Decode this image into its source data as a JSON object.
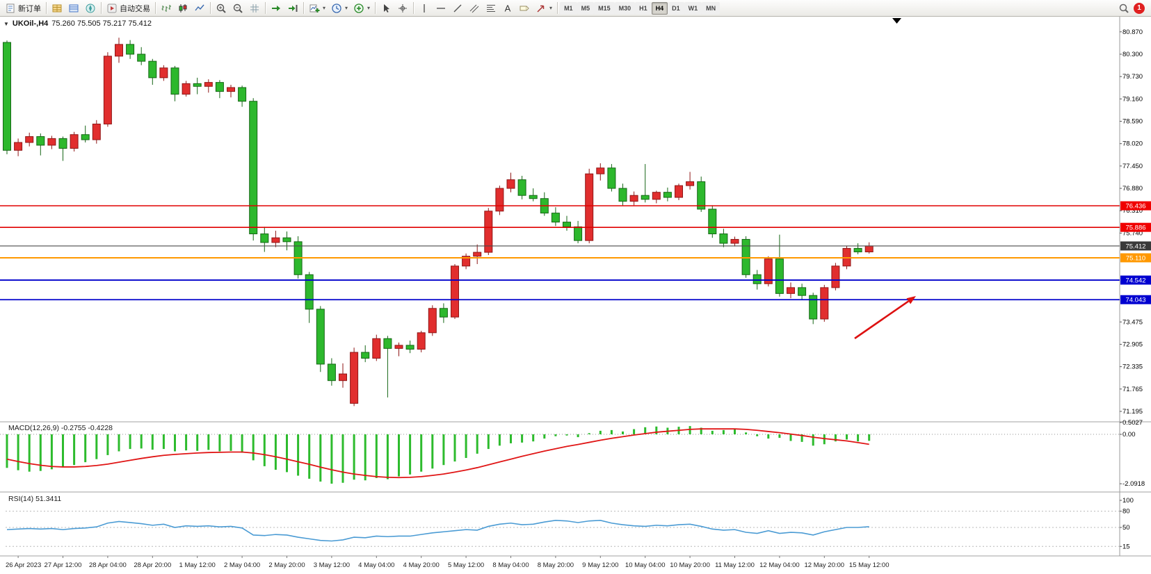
{
  "toolbar": {
    "groups": [
      {
        "items": [
          {
            "name": "new-order-button",
            "icon": "doc",
            "label": "新订单"
          }
        ]
      },
      {
        "items": [
          {
            "name": "market-watch-icon",
            "icon": "market"
          },
          {
            "name": "data-window-icon",
            "icon": "datawin"
          },
          {
            "name": "navigator-icon",
            "icon": "navigator"
          }
        ]
      },
      {
        "items": [
          {
            "name": "auto-trading-button",
            "icon": "play",
            "label": "自动交易"
          }
        ]
      },
      {
        "items": [
          {
            "name": "bar-chart-button",
            "icon": "bars"
          },
          {
            "name": "candlestick-chart-button",
            "icon": "candles"
          },
          {
            "name": "line-chart-button",
            "icon": "linechart"
          }
        ]
      },
      {
        "items": [
          {
            "name": "zoom-in-button",
            "icon": "zoomin"
          },
          {
            "name": "zoom-out-button",
            "icon": "zoomout"
          },
          {
            "name": "grid-button",
            "icon": "grid"
          }
        ]
      },
      {
        "items": [
          {
            "name": "auto-scroll-button",
            "icon": "autoscroll"
          },
          {
            "name": "chart-shift-button",
            "icon": "chartshift"
          }
        ]
      },
      {
        "items": [
          {
            "name": "new-chart-button",
            "icon": "newchart",
            "dropdown": true
          },
          {
            "name": "periods-button",
            "icon": "clock",
            "dropdown": true
          },
          {
            "name": "indicators-button",
            "icon": "indicators",
            "dropdown": true
          }
        ]
      },
      {
        "items": [
          {
            "name": "cursor-button",
            "icon": "cursor"
          },
          {
            "name": "crosshair-button",
            "icon": "crosshair"
          }
        ]
      },
      {
        "items": [
          {
            "name": "vertical-line-button",
            "icon": "vline"
          },
          {
            "name": "horizontal-line-button",
            "icon": "hline"
          },
          {
            "name": "trendline-button",
            "icon": "trendline"
          },
          {
            "name": "channel-button",
            "icon": "channel"
          },
          {
            "name": "fibonacci-button",
            "icon": "fib"
          },
          {
            "name": "text-button",
            "icon": "textA"
          },
          {
            "name": "label-button",
            "icon": "label"
          },
          {
            "name": "arrows-button",
            "icon": "arrows",
            "dropdown": true
          }
        ]
      }
    ],
    "timeframes": {
      "items": [
        "M1",
        "M5",
        "M15",
        "M30",
        "H1",
        "H4",
        "D1",
        "W1",
        "MN"
      ],
      "active": "H4"
    },
    "right": {
      "search_icon": "search",
      "notification_count": "1"
    }
  },
  "chart": {
    "toggle_glyph": "▼",
    "title_symbol": "UKOil-,H4",
    "title_ohlc": "75.260 75.505 75.217 75.412"
  },
  "chart_data": {
    "type": "candlestick",
    "symbol": "UKOil-",
    "timeframe": "H4",
    "last_bar": {
      "open": 75.26,
      "high": 75.505,
      "low": 75.217,
      "close": 75.412
    },
    "ylim": [
      71.0,
      81.15
    ],
    "price_axis_labels": [
      "80.870",
      "80.300",
      "79.730",
      "79.160",
      "78.590",
      "78.020",
      "77.450",
      "76.880",
      "76.310",
      "75.740",
      "73.475",
      "72.905",
      "72.335",
      "71.765",
      "71.195"
    ],
    "time_labels": [
      "26 Apr 2023",
      "27 Apr 12:00",
      "28 Apr 04:00",
      "28 Apr 20:00",
      "1 May 12:00",
      "2 May 04:00",
      "2 May 20:00",
      "3 May 12:00",
      "4 May 04:00",
      "4 May 20:00",
      "5 May 12:00",
      "8 May 04:00",
      "8 May 20:00",
      "9 May 12:00",
      "10 May 04:00",
      "10 May 20:00",
      "11 May 12:00",
      "12 May 04:00",
      "12 May 20:00",
      "15 May 12:00"
    ],
    "colors": {
      "bull": "#e12e2e",
      "bear": "#2db82d",
      "bull_edge": "#8f1616",
      "bear_edge": "#156615"
    },
    "candles": [
      [
        80.6,
        80.65,
        77.75,
        77.85
      ],
      [
        77.85,
        78.15,
        77.7,
        78.05
      ],
      [
        78.05,
        78.3,
        77.95,
        78.2
      ],
      [
        78.2,
        78.28,
        77.72,
        77.98
      ],
      [
        77.98,
        78.22,
        77.88,
        78.15
      ],
      [
        78.15,
        78.2,
        77.58,
        77.9
      ],
      [
        77.9,
        78.32,
        77.82,
        78.25
      ],
      [
        78.25,
        78.48,
        78.05,
        78.12
      ],
      [
        78.12,
        78.62,
        78.02,
        78.52
      ],
      [
        78.52,
        80.35,
        78.45,
        80.25
      ],
      [
        80.25,
        80.72,
        80.08,
        80.55
      ],
      [
        80.55,
        80.66,
        80.18,
        80.3
      ],
      [
        80.3,
        80.48,
        80.02,
        80.12
      ],
      [
        80.12,
        80.18,
        79.52,
        79.7
      ],
      [
        79.7,
        80.02,
        79.62,
        79.95
      ],
      [
        79.95,
        80.0,
        79.1,
        79.28
      ],
      [
        79.28,
        79.62,
        79.22,
        79.55
      ],
      [
        79.55,
        79.7,
        79.28,
        79.48
      ],
      [
        79.48,
        79.66,
        79.32,
        79.58
      ],
      [
        79.58,
        79.64,
        79.18,
        79.35
      ],
      [
        79.35,
        79.52,
        79.2,
        79.45
      ],
      [
        79.45,
        79.5,
        78.96,
        79.1
      ],
      [
        79.1,
        79.18,
        75.55,
        75.72
      ],
      [
        75.72,
        75.9,
        75.26,
        75.5
      ],
      [
        75.5,
        75.8,
        75.38,
        75.62
      ],
      [
        75.62,
        75.78,
        75.3,
        75.52
      ],
      [
        75.52,
        75.66,
        74.58,
        74.68
      ],
      [
        74.68,
        74.75,
        73.45,
        73.8
      ],
      [
        73.8,
        73.88,
        72.2,
        72.4
      ],
      [
        72.4,
        72.55,
        71.85,
        71.98
      ],
      [
        71.98,
        72.42,
        71.8,
        72.15
      ],
      [
        71.4,
        72.82,
        71.33,
        72.7
      ],
      [
        72.7,
        72.88,
        72.45,
        72.55
      ],
      [
        72.55,
        73.15,
        72.48,
        73.05
      ],
      [
        73.05,
        73.12,
        71.55,
        72.8
      ],
      [
        72.8,
        72.95,
        72.6,
        72.88
      ],
      [
        72.88,
        73.0,
        72.68,
        72.78
      ],
      [
        72.78,
        73.25,
        72.7,
        73.2
      ],
      [
        73.2,
        73.9,
        73.12,
        73.82
      ],
      [
        73.82,
        73.95,
        73.45,
        73.6
      ],
      [
        73.6,
        74.95,
        73.55,
        74.9
      ],
      [
        74.9,
        75.22,
        74.82,
        75.15
      ],
      [
        75.15,
        75.45,
        74.95,
        75.25
      ],
      [
        75.25,
        76.38,
        75.18,
        76.3
      ],
      [
        76.3,
        76.95,
        76.2,
        76.88
      ],
      [
        76.88,
        77.28,
        76.78,
        77.1
      ],
      [
        77.1,
        77.2,
        76.6,
        76.7
      ],
      [
        76.7,
        76.88,
        76.55,
        76.62
      ],
      [
        76.62,
        76.78,
        76.18,
        76.25
      ],
      [
        76.25,
        76.4,
        75.92,
        76.02
      ],
      [
        76.02,
        76.18,
        75.8,
        75.9
      ],
      [
        75.9,
        76.05,
        75.48,
        75.55
      ],
      [
        75.55,
        77.38,
        75.48,
        77.25
      ],
      [
        77.25,
        77.52,
        77.08,
        77.4
      ],
      [
        77.4,
        77.5,
        76.8,
        76.88
      ],
      [
        76.88,
        77.0,
        76.45,
        76.55
      ],
      [
        76.55,
        76.8,
        76.45,
        76.7
      ],
      [
        76.7,
        77.5,
        76.52,
        76.6
      ],
      [
        76.6,
        76.82,
        76.5,
        76.78
      ],
      [
        76.78,
        76.9,
        76.55,
        76.65
      ],
      [
        76.65,
        77.0,
        76.58,
        76.95
      ],
      [
        76.95,
        77.3,
        76.85,
        77.05
      ],
      [
        77.05,
        77.18,
        76.28,
        76.35
      ],
      [
        76.35,
        76.45,
        75.62,
        75.72
      ],
      [
        75.72,
        75.85,
        75.38,
        75.48
      ],
      [
        75.48,
        75.65,
        75.4,
        75.58
      ],
      [
        75.58,
        75.66,
        74.6,
        74.68
      ],
      [
        74.68,
        74.8,
        74.3,
        74.45
      ],
      [
        74.45,
        75.15,
        74.38,
        75.08
      ],
      [
        75.08,
        75.7,
        74.12,
        74.2
      ],
      [
        74.2,
        74.48,
        74.08,
        74.35
      ],
      [
        74.35,
        74.45,
        74.05,
        74.15
      ],
      [
        74.15,
        74.22,
        73.42,
        73.55
      ],
      [
        73.55,
        74.42,
        73.48,
        74.35
      ],
      [
        74.35,
        74.98,
        74.28,
        74.9
      ],
      [
        74.9,
        75.42,
        74.82,
        75.35
      ],
      [
        75.35,
        75.48,
        75.2,
        75.26
      ],
      [
        75.26,
        75.505,
        75.217,
        75.412
      ]
    ],
    "hlines": [
      {
        "price": 76.436,
        "label": "76.436",
        "color": "#e00000",
        "tag_bg": "#f00000",
        "width": 1.6
      },
      {
        "price": 75.886,
        "label": "75.886",
        "color": "#e00000",
        "tag_bg": "#f00000",
        "width": 1.6
      },
      {
        "price": 75.412,
        "label": "75.412",
        "color": "#4a4a4a",
        "tag_bg": "#3a3a3a",
        "width": 1.2
      },
      {
        "price": 75.11,
        "label": "75.110",
        "color": "#ff9800",
        "tag_bg": "#ff9800",
        "width": 2
      },
      {
        "price": 74.542,
        "label": "74.542",
        "color": "#0000cc",
        "tag_bg": "#0000d0",
        "width": 1.8
      },
      {
        "price": 74.043,
        "label": "74.043",
        "color": "#0000cc",
        "tag_bg": "#0000d0",
        "width": 1.8
      }
    ],
    "annotations": [
      {
        "type": "arrow",
        "color": "#dd1111",
        "tail": [
          1229,
          487
        ],
        "tip": [
          1317,
          426
        ]
      }
    ],
    "indicators": {
      "macd": {
        "label": "MACD(12,26,9) -0.2755 -0.4228",
        "main_value": -0.2755,
        "signal_value": -0.4228,
        "hist_color": "#2dbb2d",
        "signal_color": "#e01515",
        "axis": [
          {
            "v": 0.5027,
            "label": "0.5027"
          },
          {
            "v": 0,
            "label": "0.00"
          },
          {
            "v": -2.0918,
            "label": "-2.0918"
          }
        ],
        "histogram": [
          -1.42,
          -1.52,
          -1.58,
          -1.55,
          -1.48,
          -1.4,
          -1.3,
          -1.18,
          -1.05,
          -0.88,
          -0.72,
          -0.62,
          -0.6,
          -0.65,
          -0.62,
          -0.72,
          -0.68,
          -0.7,
          -0.66,
          -0.72,
          -0.7,
          -0.78,
          -1.1,
          -1.35,
          -1.5,
          -1.6,
          -1.75,
          -1.88,
          -2.0,
          -2.09,
          -2.05,
          -1.92,
          -1.95,
          -1.85,
          -1.9,
          -1.78,
          -1.7,
          -1.58,
          -1.45,
          -1.3,
          -1.15,
          -1.0,
          -0.82,
          -0.62,
          -0.48,
          -0.38,
          -0.35,
          -0.3,
          -0.18,
          -0.08,
          -0.05,
          -0.12,
          0.05,
          0.15,
          0.18,
          0.12,
          0.22,
          0.3,
          0.33,
          0.28,
          0.32,
          0.35,
          0.28,
          0.15,
          0.18,
          0.22,
          0.08,
          -0.08,
          -0.18,
          -0.15,
          -0.28,
          -0.32,
          -0.48,
          -0.42,
          -0.3,
          -0.22,
          -0.3,
          -0.2755
        ],
        "signal": [
          -1.05,
          -1.15,
          -1.24,
          -1.31,
          -1.36,
          -1.38,
          -1.38,
          -1.36,
          -1.32,
          -1.26,
          -1.18,
          -1.1,
          -1.02,
          -0.95,
          -0.89,
          -0.85,
          -0.82,
          -0.79,
          -0.77,
          -0.76,
          -0.75,
          -0.75,
          -0.79,
          -0.86,
          -0.95,
          -1.05,
          -1.16,
          -1.27,
          -1.39,
          -1.5,
          -1.6,
          -1.68,
          -1.74,
          -1.79,
          -1.82,
          -1.83,
          -1.82,
          -1.79,
          -1.74,
          -1.68,
          -1.6,
          -1.51,
          -1.41,
          -1.29,
          -1.17,
          -1.05,
          -0.93,
          -0.82,
          -0.71,
          -0.61,
          -0.51,
          -0.43,
          -0.34,
          -0.25,
          -0.17,
          -0.1,
          -0.03,
          0.03,
          0.09,
          0.13,
          0.17,
          0.21,
          0.23,
          0.23,
          0.23,
          0.23,
          0.21,
          0.17,
          0.12,
          0.07,
          0.01,
          -0.05,
          -0.12,
          -0.18,
          -0.23,
          -0.28,
          -0.35,
          -0.4228
        ]
      },
      "rsi": {
        "label": "RSI(14) 51.3411",
        "value": 51.3411,
        "line_color": "#4a9bd4",
        "levels": [
          80,
          50,
          15
        ],
        "axis": [
          {
            "v": 100,
            "label": "100"
          },
          {
            "v": 80,
            "label": "80"
          },
          {
            "v": 50,
            "label": "50"
          },
          {
            "v": 15,
            "label": "15"
          }
        ],
        "values": [
          46,
          47,
          48,
          47,
          48,
          46,
          48,
          49,
          51,
          58,
          61,
          59,
          57,
          54,
          56,
          50,
          53,
          52,
          53,
          51,
          52,
          49,
          36,
          35,
          37,
          36,
          32,
          29,
          26,
          25,
          27,
          32,
          31,
          34,
          33,
          34,
          34,
          37,
          40,
          42,
          44,
          46,
          45,
          52,
          56,
          58,
          55,
          56,
          60,
          63,
          62,
          59,
          62,
          63,
          58,
          55,
          53,
          52,
          54,
          53,
          55,
          56,
          52,
          47,
          45,
          46,
          41,
          39,
          44,
          39,
          41,
          40,
          36,
          42,
          46,
          50,
          50,
          51.34
        ]
      }
    }
  }
}
